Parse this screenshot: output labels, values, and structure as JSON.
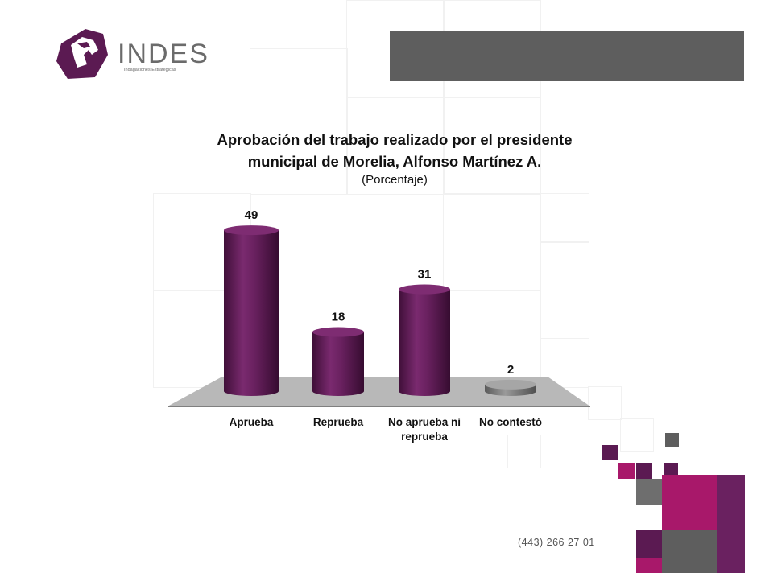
{
  "brand": {
    "name": "INDES",
    "tagline": "Indagaciones Estratégicas"
  },
  "header": {
    "title_line1": "Aprobación del trabajo realizado por el presidente",
    "title_line2": "municipal de Morelia, Alfonso Martínez A.",
    "subtitle": "(Porcentaje)"
  },
  "chart_data": {
    "type": "bar",
    "title": "Aprobación del trabajo realizado por el presidente municipal de Morelia, Alfonso Martínez A.",
    "subtitle": "(Porcentaje)",
    "categories": [
      "Aprueba",
      "Reprueba",
      "No aprueba ni\nreprueba",
      "No contestó"
    ],
    "values": [
      49,
      18,
      31,
      2
    ],
    "data_labels": [
      "49",
      "18",
      "31",
      "2"
    ],
    "colors": [
      "#6a2160",
      "#6a2160",
      "#6a2160",
      "#8a8a8a"
    ],
    "ylim": [
      0,
      50
    ],
    "grid": false,
    "legend": "none",
    "xlabel": "",
    "ylabel": ""
  },
  "footer": {
    "phone": "(443) 266 27 01"
  },
  "colors": {
    "purple_dark": "#5b1a52",
    "purple_bar": "#6a2160",
    "magenta": "#a8186a",
    "gray_dark": "#5e5e5e",
    "gray_floor": "#b5b5b5"
  }
}
